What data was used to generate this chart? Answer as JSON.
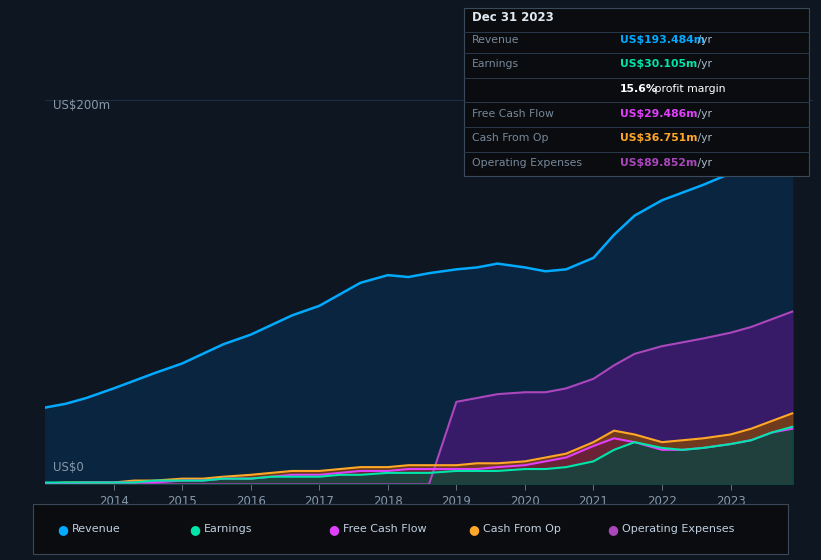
{
  "bg_color": "#0e1621",
  "plot_bg_color": "#0e1621",
  "grid_color": "#1e2d3d",
  "ylabel_text": "US$200m",
  "ylabel0_text": "US$0",
  "xlabel_ticks": [
    "2014",
    "2015",
    "2016",
    "2017",
    "2018",
    "2019",
    "2020",
    "2021",
    "2022",
    "2023"
  ],
  "info_box": {
    "title": "Dec 31 2023",
    "rows": [
      {
        "label": "Revenue",
        "value": "US$193.484m",
        "suffix": " /yr",
        "value_color": "#00aaff"
      },
      {
        "label": "Earnings",
        "value": "US$30.105m",
        "suffix": " /yr",
        "value_color": "#00e5aa"
      },
      {
        "label": "",
        "value": "15.6%",
        "suffix": " profit margin",
        "value_color": "#ffffff"
      },
      {
        "label": "Free Cash Flow",
        "value": "US$29.486m",
        "suffix": " /yr",
        "value_color": "#e040fb"
      },
      {
        "label": "Cash From Op",
        "value": "US$36.751m",
        "suffix": " /yr",
        "value_color": "#ffa726"
      },
      {
        "label": "Operating Expenses",
        "value": "US$89.852m",
        "suffix": " /yr",
        "value_color": "#ab47bc"
      }
    ]
  },
  "years": [
    2013.0,
    2013.3,
    2013.6,
    2014.0,
    2014.3,
    2014.6,
    2015.0,
    2015.3,
    2015.6,
    2016.0,
    2016.3,
    2016.6,
    2017.0,
    2017.3,
    2017.6,
    2018.0,
    2018.3,
    2018.6,
    2019.0,
    2019.3,
    2019.6,
    2020.0,
    2020.3,
    2020.6,
    2021.0,
    2021.3,
    2021.6,
    2022.0,
    2022.3,
    2022.6,
    2023.0,
    2023.3,
    2023.6,
    2023.9
  ],
  "revenue": [
    40,
    42,
    45,
    50,
    54,
    58,
    63,
    68,
    73,
    78,
    83,
    88,
    93,
    99,
    105,
    109,
    108,
    110,
    112,
    113,
    115,
    113,
    111,
    112,
    118,
    130,
    140,
    148,
    152,
    156,
    162,
    172,
    185,
    193
  ],
  "earnings": [
    1,
    1,
    1,
    1,
    1,
    2,
    2,
    2,
    3,
    3,
    4,
    4,
    4,
    5,
    5,
    6,
    6,
    6,
    7,
    7,
    7,
    8,
    8,
    9,
    12,
    18,
    22,
    19,
    18,
    19,
    21,
    23,
    27,
    30
  ],
  "free_cash_flow": [
    0.5,
    0.5,
    1,
    1,
    1,
    1,
    2,
    2,
    3,
    3,
    4,
    5,
    5,
    6,
    7,
    7,
    8,
    8,
    8,
    8,
    9,
    10,
    12,
    14,
    20,
    24,
    22,
    18,
    18,
    19,
    21,
    23,
    27,
    29
  ],
  "cash_from_op": [
    0.5,
    1,
    1,
    1,
    2,
    2,
    3,
    3,
    4,
    5,
    6,
    7,
    7,
    8,
    9,
    9,
    10,
    10,
    10,
    11,
    11,
    12,
    14,
    16,
    22,
    28,
    26,
    22,
    23,
    24,
    26,
    29,
    33,
    37
  ],
  "operating_expenses": [
    0,
    0,
    0,
    0,
    0,
    0,
    0,
    0,
    0,
    0,
    0,
    0,
    0,
    0,
    0,
    0,
    0,
    0,
    43,
    45,
    47,
    48,
    48,
    50,
    55,
    62,
    68,
    72,
    74,
    76,
    79,
    82,
    86,
    90
  ],
  "legend": [
    {
      "label": "Revenue",
      "color": "#00aaff"
    },
    {
      "label": "Earnings",
      "color": "#00e5aa"
    },
    {
      "label": "Free Cash Flow",
      "color": "#e040fb"
    },
    {
      "label": "Cash From Op",
      "color": "#ffa726"
    },
    {
      "label": "Operating Expenses",
      "color": "#ab47bc"
    }
  ]
}
